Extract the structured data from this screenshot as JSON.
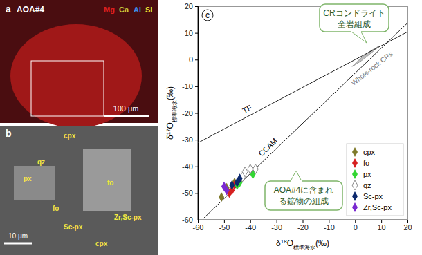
{
  "image_panel_a": {
    "label": "a",
    "title": "AOA#4",
    "elements": [
      "Mg",
      "Ca",
      "Al",
      "Si"
    ],
    "colors": [
      "#e02020",
      "#c8d040",
      "#3c8ce0",
      "#f0e030"
    ],
    "scale_bar": "100 μm"
  },
  "image_panel_b": {
    "label": "b",
    "labels": [
      "cpx",
      "qz",
      "px",
      "fo",
      "fo",
      "Zr,Sc-px",
      "Sc-px",
      "cpx"
    ],
    "scale_bar": "10 μm"
  },
  "chart_data": {
    "type": "scatter",
    "title": "c",
    "xlabel": "δ18O標準海水(‰)",
    "ylabel": "δ17O標準海水(‰)",
    "xlim": [
      -60,
      20
    ],
    "ylim": [
      -60,
      20
    ],
    "xticks": [
      -60,
      -50,
      -40,
      -30,
      -20,
      -10,
      0,
      10,
      20
    ],
    "yticks": [
      -60,
      -50,
      -40,
      -30,
      -20,
      -10,
      0,
      10,
      20
    ],
    "legend": "lower right",
    "marker": "diamond",
    "lines": [
      {
        "name": "TF",
        "x": [
          -60,
          20
        ],
        "y": [
          -31.2,
          10.4
        ]
      },
      {
        "name": "CCAM",
        "x": [
          -58,
          20
        ],
        "y": [
          -59.6,
          13.7
        ]
      }
    ],
    "region": {
      "name": "Whole-rock CRs",
      "x": [
        -1,
        3,
        8,
        9,
        4,
        0
      ],
      "y": [
        -2.5,
        0,
        4,
        5,
        2,
        -1.5
      ]
    },
    "annotations": [
      {
        "text_lines": [
          "CRコンドライト",
          "全岩組成"
        ]
      },
      {
        "text_lines": [
          "AOA#4に含まれ",
          "る鉱物の組成"
        ]
      }
    ],
    "series": [
      {
        "name": "cpx",
        "color": "#7f7a2a",
        "x": [
          -51,
          -49,
          -46
        ],
        "y": [
          -51.5,
          -48,
          -46
        ]
      },
      {
        "name": "fo",
        "color": "#d62020",
        "x": [
          -48,
          -47,
          -46
        ],
        "y": [
          -50,
          -49,
          -47
        ]
      },
      {
        "name": "px",
        "color": "#33d633",
        "x": [
          -39,
          -44,
          -45
        ],
        "y": [
          -43,
          -46,
          -47
        ]
      },
      {
        "name": "qz",
        "color": "#ffffff",
        "x": [
          -42,
          -40,
          -43,
          -38
        ],
        "y": [
          -42,
          -41,
          -44,
          -41
        ]
      },
      {
        "name": "Sc-px",
        "color": "#0d2a6e",
        "x": [
          -44,
          -47,
          -45
        ],
        "y": [
          -44.5,
          -47,
          -46
        ]
      },
      {
        "name": "Zr,Sc-px",
        "color": "#7a2ad0",
        "x": [
          -50,
          -49
        ],
        "y": [
          -47.5,
          -49
        ]
      }
    ]
  }
}
